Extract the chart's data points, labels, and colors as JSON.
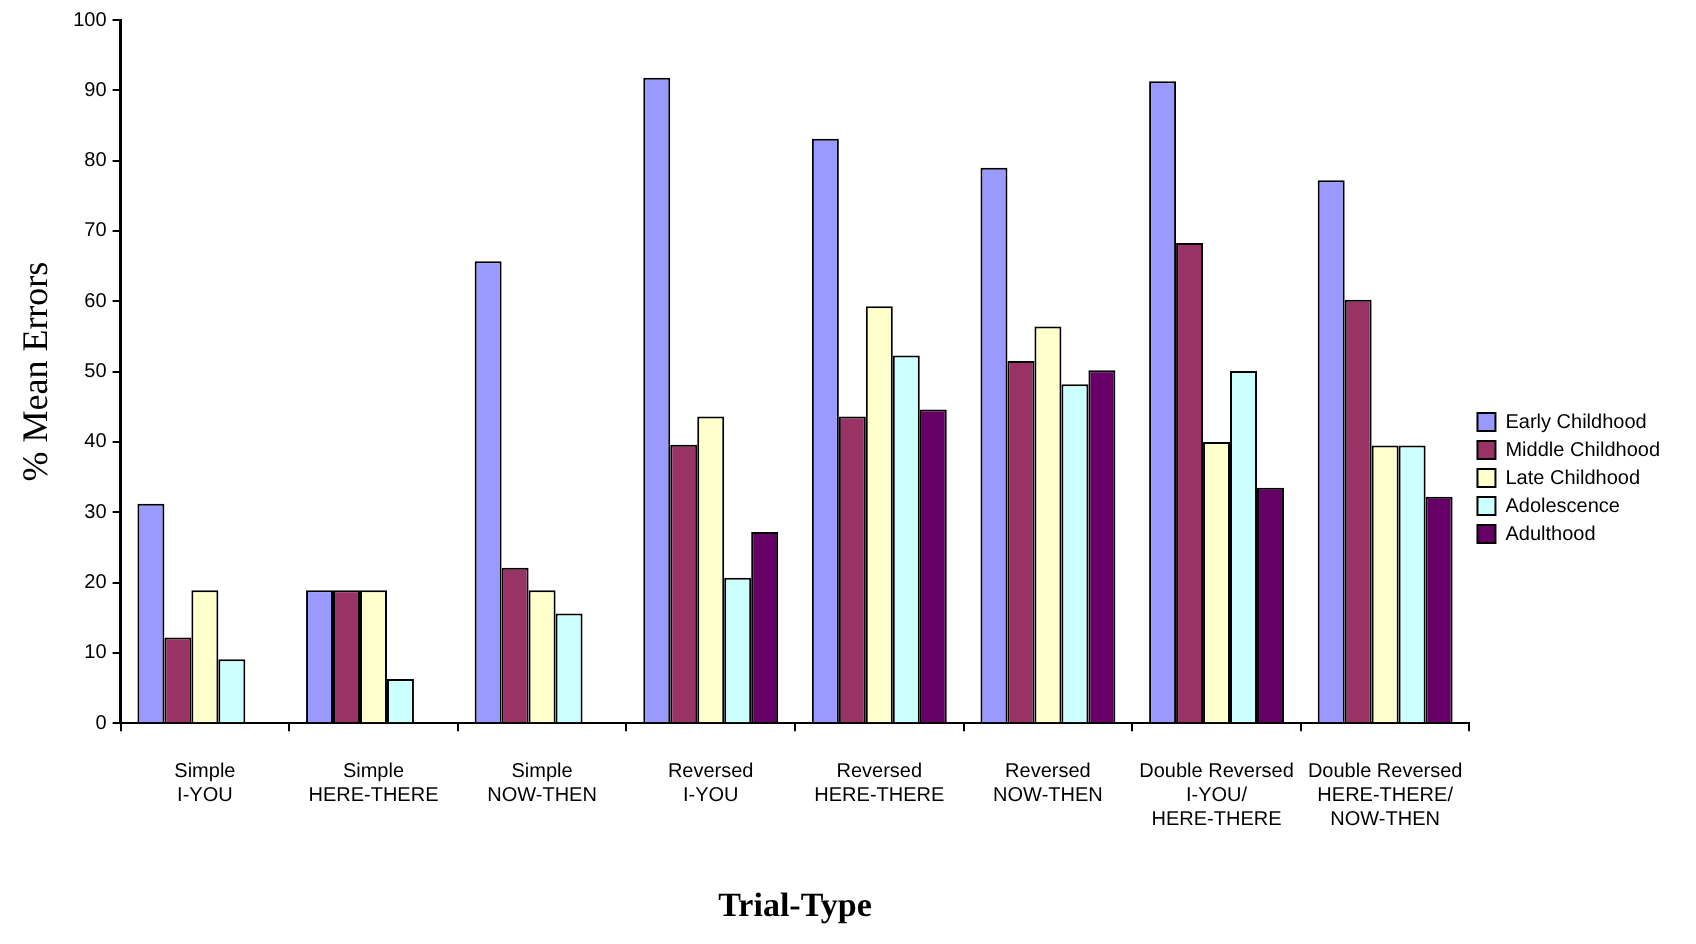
{
  "chart_data": {
    "type": "bar",
    "xlabel": "Trial-Type",
    "ylabel": "% Mean Errors",
    "categories": [
      "Simple\nI-YOU",
      "Simple\nHERE-THERE",
      "Simple\nNOW-THEN",
      "Reversed\nI-YOU",
      "Reversed\nHERE-THERE",
      "Reversed\nNOW-THEN",
      "Double Reversed\nI-YOU/\nHERE-THERE",
      "Double Reversed\nHERE-THERE/\nNOW-THEN"
    ],
    "series": [
      {
        "name": "Early Childhood",
        "color": "#9999ff",
        "values": [
          31.2,
          18.9,
          65.7,
          91.8,
          83.1,
          79.0,
          91.3,
          77.2
        ]
      },
      {
        "name": "Middle Childhood",
        "color": "#993366",
        "values": [
          12.2,
          18.9,
          22.1,
          39.6,
          43.6,
          51.5,
          68.3,
          60.2
        ]
      },
      {
        "name": "Late Childhood",
        "color": "#ffffcc",
        "values": [
          18.9,
          18.9,
          18.9,
          43.6,
          59.3,
          56.4,
          40.0,
          39.5
        ]
      },
      {
        "name": "Adolescence",
        "color": "#ccffff",
        "values": [
          9.1,
          6.3,
          15.6,
          20.7,
          52.3,
          48.2,
          50.1,
          39.5
        ]
      },
      {
        "name": "Adulthood",
        "color": "#660066",
        "values": [
          null,
          null,
          null,
          27.2,
          44.6,
          50.2,
          33.5,
          32.2
        ]
      }
    ],
    "ylim": [
      0,
      100
    ],
    "yticks": [
      0,
      10,
      20,
      30,
      40,
      50,
      60,
      70,
      80,
      90,
      100
    ],
    "grid": false,
    "legend": "right"
  }
}
